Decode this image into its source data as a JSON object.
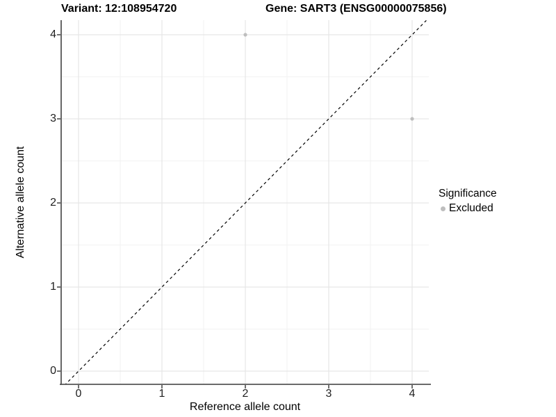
{
  "titles": {
    "variant": "Variant: 12:108954720",
    "gene": "Gene: SART3 (ENSG00000075856)"
  },
  "axes": {
    "x_label": "Reference allele count",
    "y_label": "Alternative allele count",
    "x_ticks": [
      "0",
      "1",
      "2",
      "3",
      "4"
    ],
    "y_ticks": [
      "0",
      "1",
      "2",
      "3",
      "4"
    ]
  },
  "legend": {
    "title": "Significance",
    "items": [
      {
        "label": "Excluded",
        "color": "#bebebe"
      }
    ]
  },
  "colors": {
    "point": "#bebebe",
    "grid_major": "#e6e6e6",
    "grid_minor": "#f2f2f2",
    "axis_line": "#555555",
    "tick_mark": "#333333",
    "reference_line": "#000000",
    "background": "#ffffff"
  },
  "chart_data": {
    "type": "scatter",
    "title": "Variant: 12:108954720   Gene: SART3 (ENSG00000075856)",
    "xlabel": "Reference allele count",
    "ylabel": "Alternative allele count",
    "xlim": [
      -0.21,
      4.2
    ],
    "ylim": [
      -0.17,
      4.17
    ],
    "x_tick_values": [
      0,
      1,
      2,
      3,
      4
    ],
    "y_tick_values": [
      0,
      1,
      2,
      3,
      4
    ],
    "minor_tick_step": 0.5,
    "grid": "on",
    "legend_position": "right",
    "series": [
      {
        "name": "Excluded",
        "color": "#bebebe",
        "points": [
          {
            "x": 2,
            "y": 4
          },
          {
            "x": 4,
            "y": 3
          }
        ]
      }
    ],
    "reference_line": {
      "kind": "identity",
      "slope": 1,
      "intercept": 0,
      "style": "dashed",
      "color": "#000000"
    }
  }
}
